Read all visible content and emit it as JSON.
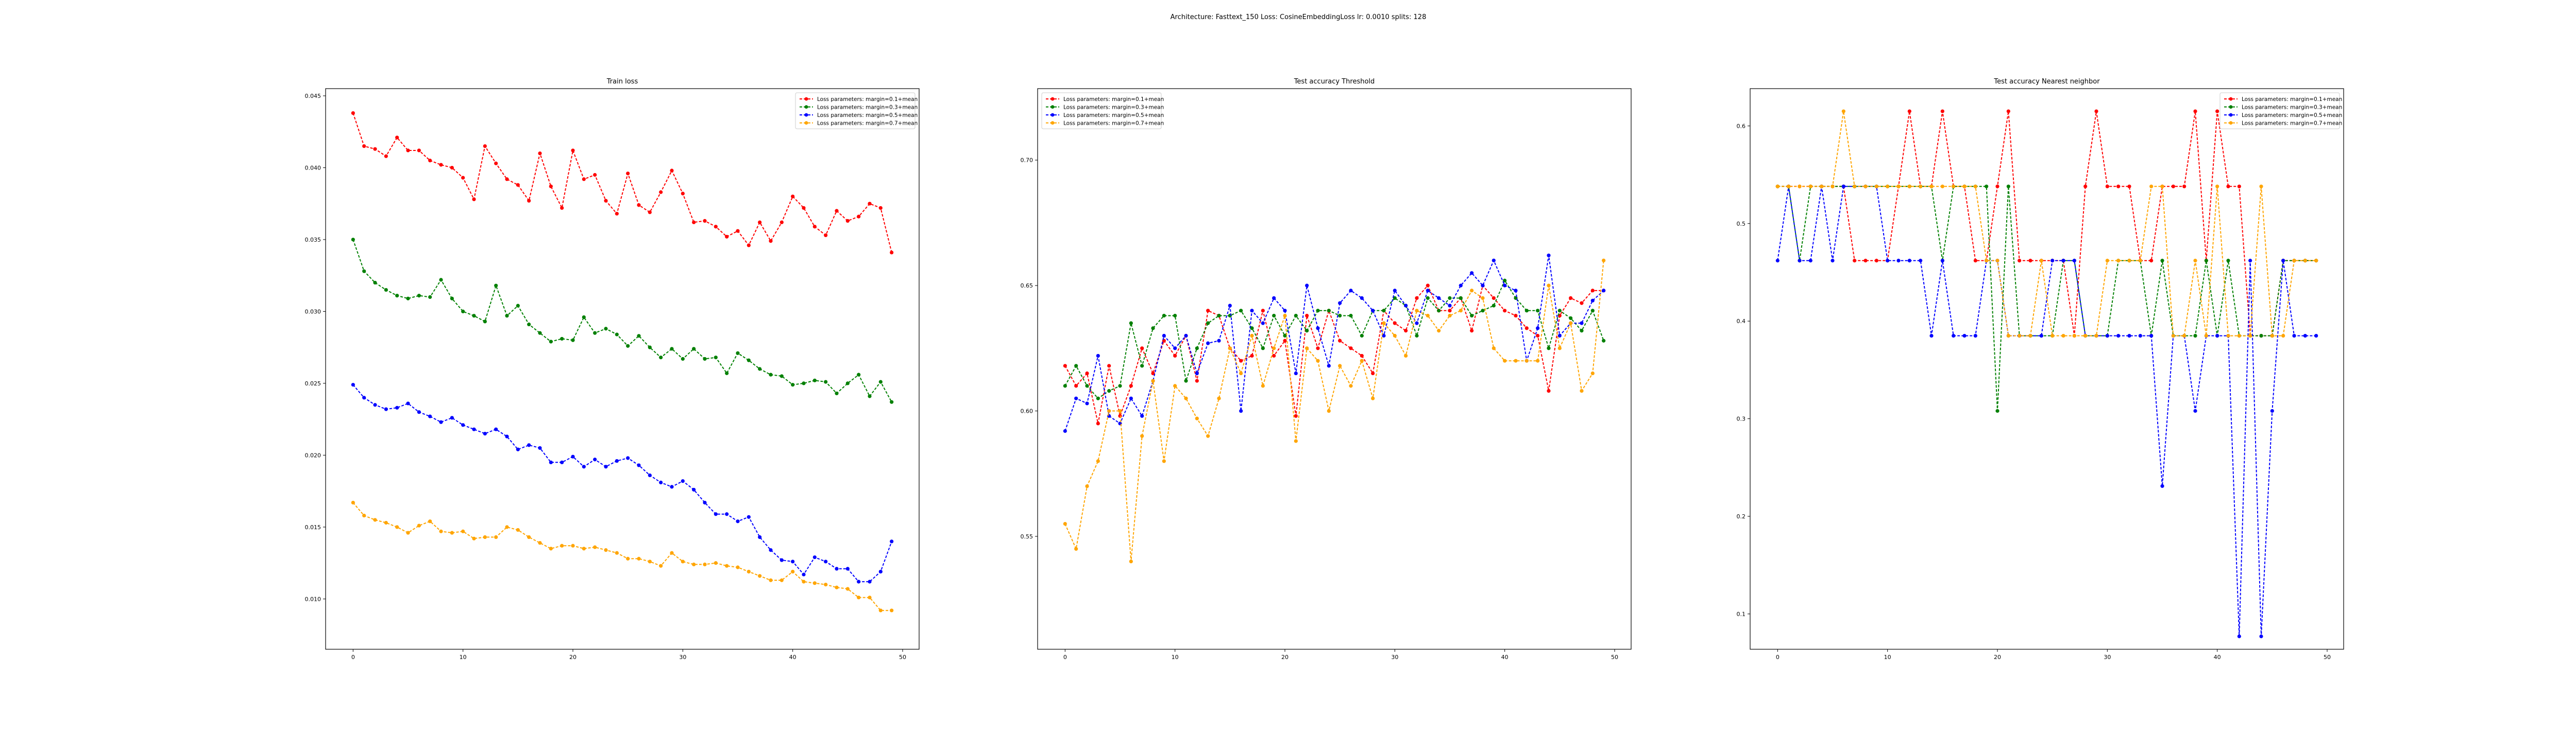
{
  "suptitle": "Architecture: Fasttext_150 Loss: CosineEmbeddingLoss lr: 0.0010 splits: 128",
  "colors": {
    "red": "#ff0000",
    "green": "#008000",
    "blue": "#0000ff",
    "orange": "#ffa500"
  },
  "chart_data": [
    {
      "type": "line",
      "title": "Train loss",
      "xlabel": "",
      "ylabel": "",
      "xlim": [
        -2.5,
        51.5
      ],
      "ylim": [
        0.0065,
        0.0455
      ],
      "xticks": [
        0,
        10,
        20,
        30,
        40,
        50
      ],
      "yticks": [
        0.01,
        0.015,
        0.02,
        0.025,
        0.03,
        0.035,
        0.04,
        0.045
      ],
      "ytick_labels": [
        "0.010",
        "0.015",
        "0.020",
        "0.025",
        "0.030",
        "0.035",
        "0.040",
        "0.045"
      ],
      "legend_position": "top-right",
      "x": [
        0,
        1,
        2,
        3,
        4,
        5,
        6,
        7,
        8,
        9,
        10,
        11,
        12,
        13,
        14,
        15,
        16,
        17,
        18,
        19,
        20,
        21,
        22,
        23,
        24,
        25,
        26,
        27,
        28,
        29,
        30,
        31,
        32,
        33,
        34,
        35,
        36,
        37,
        38,
        39,
        40,
        41,
        42,
        43,
        44,
        45,
        46,
        47,
        48,
        49
      ],
      "series": [
        {
          "name": "Loss parameters: margin=0.1+mean",
          "color": "#ff0000",
          "values": [
            0.0438,
            0.0415,
            0.0413,
            0.0408,
            0.0421,
            0.0412,
            0.0412,
            0.0405,
            0.0402,
            0.04,
            0.0393,
            0.0378,
            0.0415,
            0.0403,
            0.0392,
            0.0388,
            0.0377,
            0.041,
            0.0387,
            0.0372,
            0.0412,
            0.0392,
            0.0395,
            0.0377,
            0.0368,
            0.0396,
            0.0374,
            0.0369,
            0.0383,
            0.0398,
            0.0382,
            0.0362,
            0.0363,
            0.0359,
            0.0352,
            0.0356,
            0.0346,
            0.0362,
            0.0349,
            0.0362,
            0.038,
            0.0372,
            0.0359,
            0.0353,
            0.037,
            0.0363,
            0.0366,
            0.0375,
            0.0372,
            0.0341
          ]
        },
        {
          "name": "Loss parameters: margin=0.3+mean",
          "color": "#008000",
          "values": [
            0.035,
            0.0328,
            0.032,
            0.0315,
            0.0311,
            0.0309,
            0.0311,
            0.031,
            0.0322,
            0.0309,
            0.03,
            0.0297,
            0.0293,
            0.0318,
            0.0297,
            0.0304,
            0.0291,
            0.0285,
            0.0279,
            0.0281,
            0.028,
            0.0296,
            0.0285,
            0.0288,
            0.0284,
            0.0276,
            0.0283,
            0.0275,
            0.0268,
            0.0274,
            0.0267,
            0.0274,
            0.0267,
            0.0268,
            0.0257,
            0.0271,
            0.0266,
            0.026,
            0.0256,
            0.0255,
            0.0249,
            0.025,
            0.0252,
            0.0251,
            0.0243,
            0.025,
            0.0256,
            0.0241,
            0.0251,
            0.0237
          ]
        },
        {
          "name": "Loss parameters: margin=0.5+mean",
          "color": "#0000ff",
          "values": [
            0.0249,
            0.024,
            0.0235,
            0.0232,
            0.0233,
            0.0236,
            0.023,
            0.0227,
            0.0223,
            0.0226,
            0.0221,
            0.0218,
            0.0215,
            0.0218,
            0.0213,
            0.0204,
            0.0207,
            0.0205,
            0.0195,
            0.0195,
            0.0199,
            0.0192,
            0.0197,
            0.0192,
            0.0196,
            0.0198,
            0.0193,
            0.0186,
            0.0181,
            0.0178,
            0.0182,
            0.0176,
            0.0167,
            0.0159,
            0.0159,
            0.0154,
            0.0157,
            0.0143,
            0.0134,
            0.0127,
            0.0126,
            0.0117,
            0.0129,
            0.0126,
            0.0121,
            0.0121,
            0.0112,
            0.0112,
            0.0119,
            0.014
          ]
        },
        {
          "name": "Loss parameters: margin=0.7+mean",
          "color": "#ffa500",
          "values": [
            0.0167,
            0.0158,
            0.0155,
            0.0153,
            0.015,
            0.0146,
            0.0151,
            0.0154,
            0.0147,
            0.0146,
            0.0147,
            0.0142,
            0.0143,
            0.0143,
            0.015,
            0.0148,
            0.0143,
            0.0139,
            0.0135,
            0.0137,
            0.0137,
            0.0135,
            0.0136,
            0.0134,
            0.0132,
            0.0128,
            0.0128,
            0.0126,
            0.0123,
            0.0132,
            0.0126,
            0.0124,
            0.0124,
            0.0125,
            0.0123,
            0.0122,
            0.0119,
            0.0116,
            0.0113,
            0.0113,
            0.0119,
            0.0112,
            0.0111,
            0.011,
            0.0108,
            0.0107,
            0.0101,
            0.0101,
            0.0092,
            0.0092
          ]
        }
      ]
    },
    {
      "type": "line",
      "title": "Test accuracy Threshold",
      "xlabel": "",
      "ylabel": "",
      "xlim": [
        -2.5,
        51.5
      ],
      "ylim": [
        0.505,
        0.7285
      ],
      "xticks": [
        0,
        10,
        20,
        30,
        40,
        50
      ],
      "yticks": [
        0.55,
        0.6,
        0.65,
        0.7
      ],
      "ytick_labels": [
        "0.55",
        "0.60",
        "0.65",
        "0.70"
      ],
      "legend_position": "top-left",
      "x": [
        0,
        1,
        2,
        3,
        4,
        5,
        6,
        7,
        8,
        9,
        10,
        11,
        12,
        13,
        14,
        15,
        16,
        17,
        18,
        19,
        20,
        21,
        22,
        23,
        24,
        25,
        26,
        27,
        28,
        29,
        30,
        31,
        32,
        33,
        34,
        35,
        36,
        37,
        38,
        39,
        40,
        41,
        42,
        43,
        44,
        45,
        46,
        47,
        48,
        49
      ],
      "series": [
        {
          "name": "Loss parameters: margin=0.1+mean",
          "color": "#ff0000",
          "values": [
            0.618,
            0.61,
            0.615,
            0.595,
            0.618,
            0.598,
            0.61,
            0.625,
            0.615,
            0.628,
            0.622,
            0.63,
            0.612,
            0.64,
            0.638,
            0.625,
            0.62,
            0.622,
            0.64,
            0.622,
            0.628,
            0.598,
            0.638,
            0.625,
            0.64,
            0.628,
            0.625,
            0.622,
            0.615,
            0.64,
            0.635,
            0.632,
            0.645,
            0.65,
            0.64,
            0.64,
            0.645,
            0.632,
            0.65,
            0.645,
            0.64,
            0.638,
            0.633,
            0.63,
            0.608,
            0.638,
            0.645,
            0.643,
            0.648,
            0.648
          ]
        },
        {
          "name": "Loss parameters: margin=0.3+mean",
          "color": "#008000",
          "values": [
            0.61,
            0.618,
            0.61,
            0.605,
            0.608,
            0.61,
            0.635,
            0.618,
            0.633,
            0.638,
            0.638,
            0.612,
            0.625,
            0.635,
            0.638,
            0.638,
            0.64,
            0.633,
            0.625,
            0.638,
            0.63,
            0.638,
            0.632,
            0.64,
            0.64,
            0.638,
            0.638,
            0.63,
            0.64,
            0.64,
            0.645,
            0.642,
            0.63,
            0.645,
            0.64,
            0.645,
            0.645,
            0.638,
            0.64,
            0.642,
            0.652,
            0.645,
            0.64,
            0.64,
            0.625,
            0.64,
            0.637,
            0.632,
            0.64,
            0.628
          ]
        },
        {
          "name": "Loss parameters: margin=0.5+mean",
          "color": "#0000ff",
          "values": [
            0.592,
            0.605,
            0.603,
            0.622,
            0.598,
            0.595,
            0.605,
            0.598,
            0.612,
            0.63,
            0.625,
            0.63,
            0.615,
            0.627,
            0.628,
            0.642,
            0.6,
            0.64,
            0.635,
            0.645,
            0.64,
            0.615,
            0.65,
            0.633,
            0.618,
            0.643,
            0.648,
            0.645,
            0.64,
            0.63,
            0.648,
            0.642,
            0.635,
            0.648,
            0.645,
            0.642,
            0.65,
            0.655,
            0.65,
            0.66,
            0.65,
            0.648,
            0.62,
            0.633,
            0.662,
            0.63,
            0.635,
            0.635,
            0.644,
            0.648
          ]
        },
        {
          "name": "Loss parameters: margin=0.7+mean",
          "color": "#ffa500",
          "values": [
            0.555,
            0.545,
            0.57,
            0.58,
            0.6,
            0.6,
            0.54,
            0.59,
            0.612,
            0.58,
            0.61,
            0.605,
            0.597,
            0.59,
            0.605,
            0.625,
            0.615,
            0.63,
            0.61,
            0.625,
            0.638,
            0.588,
            0.625,
            0.62,
            0.6,
            0.618,
            0.61,
            0.62,
            0.605,
            0.635,
            0.63,
            0.622,
            0.64,
            0.638,
            0.632,
            0.638,
            0.64,
            0.648,
            0.645,
            0.625,
            0.62,
            0.62,
            0.62,
            0.62,
            0.65,
            0.625,
            0.635,
            0.608,
            0.615,
            0.66
          ]
        }
      ]
    },
    {
      "type": "line",
      "title": "Test accuracy Nearest neighbor",
      "xlabel": "",
      "ylabel": "",
      "xlim": [
        -2.5,
        51.5
      ],
      "ylim": [
        0.0638,
        0.6382
      ],
      "xticks": [
        0,
        10,
        20,
        30,
        40,
        50
      ],
      "yticks": [
        0.1,
        0.2,
        0.3,
        0.4,
        0.5,
        0.6
      ],
      "ytick_labels": [
        "0.1",
        "0.2",
        "0.3",
        "0.4",
        "0.5",
        "0.6"
      ],
      "legend_position": "top-right",
      "x": [
        0,
        1,
        2,
        3,
        4,
        5,
        6,
        7,
        8,
        9,
        10,
        11,
        12,
        13,
        14,
        15,
        16,
        17,
        18,
        19,
        20,
        21,
        22,
        23,
        24,
        25,
        26,
        27,
        28,
        29,
        30,
        31,
        32,
        33,
        34,
        35,
        36,
        37,
        38,
        39,
        40,
        41,
        42,
        43,
        44,
        45,
        46,
        47,
        48,
        49
      ],
      "series": [
        {
          "name": "Loss parameters: margin=0.1+mean",
          "color": "#ff0000",
          "values": [
            0.538,
            0.538,
            0.538,
            0.538,
            0.538,
            0.538,
            0.538,
            0.462,
            0.462,
            0.462,
            0.462,
            0.538,
            0.615,
            0.538,
            0.538,
            0.615,
            0.538,
            0.538,
            0.462,
            0.462,
            0.538,
            0.615,
            0.462,
            0.462,
            0.462,
            0.462,
            0.462,
            0.385,
            0.538,
            0.615,
            0.538,
            0.538,
            0.538,
            0.462,
            0.462,
            0.538,
            0.538,
            0.538,
            0.615,
            0.462,
            0.615,
            0.538,
            0.538,
            0.385,
            0.385,
            0.385,
            0.462,
            0.462,
            0.462,
            0.462
          ]
        },
        {
          "name": "Loss parameters: margin=0.3+mean",
          "color": "#008000",
          "values": [
            0.538,
            0.538,
            0.462,
            0.538,
            0.538,
            0.538,
            0.538,
            0.538,
            0.538,
            0.538,
            0.538,
            0.538,
            0.538,
            0.538,
            0.538,
            0.462,
            0.538,
            0.538,
            0.538,
            0.538,
            0.308,
            0.538,
            0.385,
            0.385,
            0.385,
            0.385,
            0.462,
            0.462,
            0.385,
            0.385,
            0.385,
            0.462,
            0.462,
            0.462,
            0.385,
            0.462,
            0.385,
            0.385,
            0.385,
            0.462,
            0.385,
            0.462,
            0.385,
            0.385,
            0.385,
            0.385,
            0.462,
            0.462,
            0.462,
            0.462
          ]
        },
        {
          "name": "Loss parameters: margin=0.5+mean",
          "color": "#0000ff",
          "values": [
            0.462,
            0.538,
            0.462,
            0.462,
            0.538,
            0.462,
            0.538,
            0.538,
            0.538,
            0.538,
            0.462,
            0.462,
            0.462,
            0.462,
            0.385,
            0.462,
            0.385,
            0.385,
            0.385,
            0.462,
            0.462,
            0.385,
            0.385,
            0.385,
            0.385,
            0.462,
            0.462,
            0.462,
            0.385,
            0.385,
            0.385,
            0.385,
            0.385,
            0.385,
            0.385,
            0.231,
            0.385,
            0.385,
            0.308,
            0.385,
            0.385,
            0.385,
            0.077,
            0.462,
            0.077,
            0.308,
            0.462,
            0.385,
            0.385,
            0.385
          ]
        },
        {
          "name": "Loss parameters: margin=0.7+mean",
          "color": "#ffa500",
          "values": [
            0.538,
            0.538,
            0.538,
            0.538,
            0.538,
            0.538,
            0.615,
            0.538,
            0.538,
            0.538,
            0.538,
            0.538,
            0.538,
            0.538,
            0.538,
            0.538,
            0.538,
            0.538,
            0.538,
            0.462,
            0.462,
            0.385,
            0.385,
            0.385,
            0.462,
            0.385,
            0.385,
            0.385,
            0.385,
            0.385,
            0.462,
            0.462,
            0.462,
            0.462,
            0.538,
            0.538,
            0.385,
            0.385,
            0.462,
            0.385,
            0.538,
            0.385,
            0.385,
            0.385,
            0.538,
            0.385,
            0.385,
            0.462,
            0.462,
            0.462
          ]
        }
      ]
    }
  ]
}
